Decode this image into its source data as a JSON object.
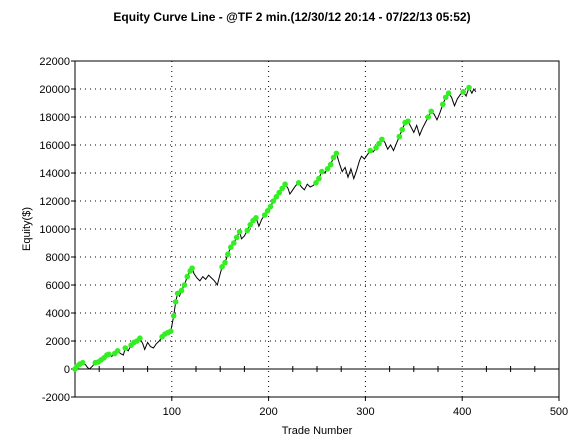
{
  "chart_data": {
    "type": "line",
    "title": "Equity Curve Line - @TF 2 min.(12/30/12 20:14 - 07/22/13 05:52)",
    "xlabel": "Trade Number",
    "ylabel": "Equity($)",
    "xlim": [
      0,
      500
    ],
    "ylim": [
      -2000,
      22000
    ],
    "x_ticks": [
      100,
      200,
      300,
      400,
      500
    ],
    "y_ticks": [
      -2000,
      0,
      2000,
      4000,
      6000,
      8000,
      10000,
      12000,
      14000,
      16000,
      18000,
      20000,
      22000
    ],
    "grid": true,
    "legend": "none",
    "colors": {
      "line": "#000000",
      "new_high_marker": "#33ee22",
      "grid": "#000000"
    },
    "series": [
      {
        "x": [
          0,
          2,
          5,
          8,
          11,
          13,
          15,
          18,
          21,
          24,
          27,
          30,
          33,
          35,
          38,
          41,
          44,
          47,
          50,
          52,
          55,
          58,
          61,
          64,
          67,
          70,
          72,
          75,
          78,
          81,
          84,
          87,
          90,
          93,
          96,
          99,
          102,
          104,
          106,
          108,
          110,
          113,
          116,
          119,
          121,
          123,
          126,
          129,
          132,
          135,
          138,
          141,
          144,
          147,
          150,
          152,
          155,
          158,
          161,
          164,
          167,
          170,
          172,
          175,
          178,
          181,
          184,
          187,
          190,
          193,
          196,
          199,
          202,
          205,
          208,
          211,
          214,
          217,
          220,
          222,
          225,
          228,
          231,
          234,
          237,
          240,
          243,
          246,
          249,
          252,
          255,
          258,
          261,
          264,
          267,
          270,
          273,
          276,
          279,
          282,
          285,
          288,
          291,
          294,
          296,
          299,
          302,
          305,
          308,
          311,
          314,
          317,
          320,
          323,
          326,
          329,
          332,
          335,
          338,
          341,
          344,
          347,
          350,
          353,
          356,
          359,
          362,
          365,
          368,
          371,
          374,
          377,
          380,
          383,
          386,
          389,
          392,
          395,
          398,
          401,
          404,
          407,
          410,
          412,
          414
        ],
        "y": [
          0,
          200,
          350,
          450,
          300,
          100,
          0,
          200,
          450,
          500,
          650,
          800,
          1000,
          1050,
          900,
          1100,
          1300,
          1100,
          1000,
          1500,
          1300,
          1700,
          1900,
          2000,
          2200,
          1800,
          1400,
          1900,
          1600,
          1500,
          1800,
          2000,
          2300,
          2500,
          2600,
          2700,
          3800,
          4800,
          5400,
          5200,
          5600,
          6000,
          6600,
          7000,
          7200,
          6800,
          6500,
          6300,
          6600,
          6400,
          6700,
          6500,
          6300,
          6000,
          6800,
          7300,
          7600,
          8200,
          8700,
          9000,
          9400,
          9800,
          9300,
          9500,
          9900,
          10300,
          10600,
          10800,
          10200,
          10700,
          11000,
          11300,
          11600,
          12000,
          12300,
          12600,
          12900,
          13200,
          12900,
          12500,
          12800,
          13100,
          13300,
          13000,
          12800,
          13200,
          13000,
          13100,
          13300,
          13600,
          14100,
          14000,
          14300,
          14600,
          15100,
          15400,
          14700,
          14100,
          14400,
          13700,
          14300,
          13600,
          14200,
          14900,
          15200,
          15000,
          15300,
          15600,
          15500,
          15800,
          16100,
          16400,
          16200,
          15700,
          16000,
          15600,
          16100,
          16600,
          17100,
          17600,
          17700,
          17300,
          16900,
          17400,
          16700,
          17200,
          17600,
          18000,
          18400,
          18200,
          17800,
          18300,
          18900,
          19400,
          19700,
          19400,
          18800,
          19300,
          19600,
          19800,
          19500,
          20100,
          19700,
          20000,
          19800
        ]
      }
    ]
  }
}
